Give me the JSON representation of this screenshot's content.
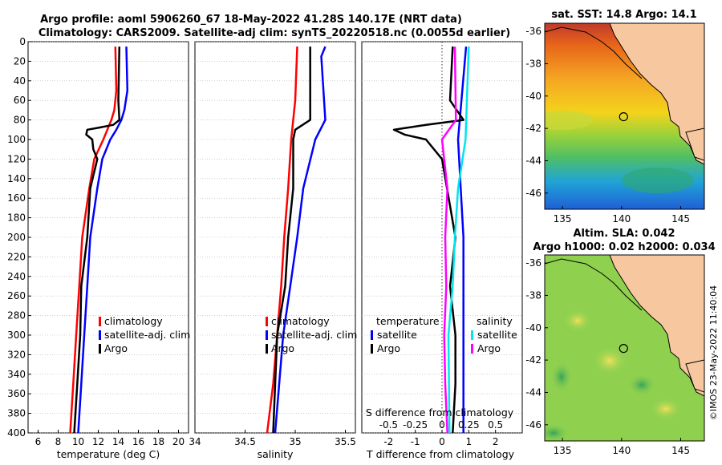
{
  "figure": {
    "title_line1": "Argo profile: aoml 5906260_67 18-May-2022 41.28S 140.17E (NRT data)",
    "title_line2": "Climatology: CARS2009. Satellite-adj clim: synTS_20220518.nc (0.0055d earlier)",
    "credit": "©IMOS 23-May-2022 11:40:04",
    "colors": {
      "climatology": "#ff0000",
      "satellite": "#0000ff",
      "argo": "#000000",
      "salinity_sat": "#00e5ee",
      "salinity_argo": "#ff00ff"
    }
  },
  "chart_data": [
    {
      "id": "temperature",
      "type": "line",
      "xlabel": "temperature (deg C)",
      "ylabel": "",
      "xlim": [
        5,
        21
      ],
      "ylim": [
        400,
        0
      ],
      "xticks": [
        "6",
        "8",
        "10",
        "12",
        "14",
        "16",
        "18",
        "20"
      ],
      "yticks": [
        "0",
        "20",
        "40",
        "60",
        "80",
        "100",
        "120",
        "140",
        "160",
        "180",
        "200",
        "220",
        "240",
        "260",
        "280",
        "300",
        "320",
        "340",
        "360",
        "380",
        "400"
      ],
      "legend": [
        "climatology",
        "satellite-adj. clim",
        "Argo"
      ],
      "series": [
        {
          "name": "climatology",
          "depth": [
            5,
            50,
            70,
            80,
            90,
            100,
            120,
            150,
            200,
            250,
            300,
            350,
            400
          ],
          "values": [
            13.7,
            13.8,
            13.6,
            13.3,
            12.9,
            12.5,
            11.6,
            11.1,
            10.4,
            10.1,
            9.8,
            9.5,
            9.2
          ]
        },
        {
          "name": "satellite-adj. clim",
          "depth": [
            5,
            50,
            70,
            80,
            90,
            100,
            120,
            150,
            200,
            250,
            300,
            350,
            400
          ],
          "values": [
            14.8,
            14.9,
            14.6,
            14.3,
            13.8,
            13.2,
            12.4,
            11.9,
            11.2,
            10.9,
            10.6,
            10.3,
            10.0
          ]
        },
        {
          "name": "Argo",
          "depth": [
            5,
            60,
            80,
            85,
            88,
            90,
            95,
            100,
            110,
            120,
            150,
            200,
            250,
            300,
            350,
            400
          ],
          "values": [
            14.1,
            14.0,
            14.1,
            13.5,
            12.0,
            10.9,
            10.8,
            11.4,
            11.5,
            11.9,
            11.2,
            10.9,
            10.3,
            10.2,
            9.9,
            9.6
          ]
        }
      ]
    },
    {
      "id": "salinity",
      "type": "line",
      "xlabel": "salinity",
      "ylabel": "",
      "xlim": [
        34,
        35.6
      ],
      "ylim": [
        400,
        0
      ],
      "xticks": [
        "34",
        "34.5",
        "35",
        "35.5"
      ],
      "legend": [
        "climatology",
        "satellite-adj. clim",
        "Argo"
      ],
      "series": [
        {
          "name": "climatology",
          "depth": [
            5,
            60,
            100,
            150,
            200,
            250,
            300,
            350,
            400
          ],
          "values": [
            35.02,
            35.0,
            34.96,
            34.93,
            34.89,
            34.86,
            34.82,
            34.78,
            34.72
          ]
        },
        {
          "name": "satellite-adj. clim",
          "depth": [
            5,
            15,
            80,
            100,
            150,
            200,
            250,
            300,
            350,
            400
          ],
          "values": [
            35.3,
            35.26,
            35.3,
            35.2,
            35.08,
            35.02,
            34.95,
            34.88,
            34.84,
            34.8
          ]
        },
        {
          "name": "Argo",
          "depth": [
            5,
            80,
            90,
            100,
            150,
            200,
            250,
            300,
            350,
            400
          ],
          "values": [
            35.15,
            35.15,
            35.0,
            34.98,
            34.98,
            34.93,
            34.9,
            34.82,
            34.8,
            34.78
          ]
        }
      ]
    },
    {
      "id": "differences",
      "type": "line",
      "xlabel": "T difference from climatology",
      "xlabel_top": "S difference from climatology",
      "xlim": [
        -3,
        3
      ],
      "ylim": [
        400,
        0
      ],
      "xticks": [
        "-2",
        "-1",
        "0",
        "1",
        "2"
      ],
      "xticks_top": [
        "-0.5",
        "-0.25",
        "0",
        "0.25",
        "0.5"
      ],
      "legend_left_title": "temperature",
      "legend_left": [
        "satellite",
        "Argo"
      ],
      "legend_right_title": "salinity",
      "legend_right": [
        "satellite",
        "Argo"
      ],
      "series": [
        {
          "name": "temperature satellite",
          "depth": [
            5,
            100,
            150,
            200,
            250,
            300,
            400
          ],
          "values": [
            0.9,
            0.6,
            0.7,
            0.8,
            0.8,
            0.8,
            0.8
          ]
        },
        {
          "name": "temperature Argo",
          "depth": [
            5,
            60,
            80,
            85,
            90,
            95,
            100,
            120,
            200,
            250,
            300,
            350,
            400
          ],
          "values": [
            0.4,
            0.3,
            0.8,
            -0.6,
            -1.8,
            -1.4,
            -0.6,
            0.0,
            0.5,
            0.3,
            0.5,
            0.5,
            0.4
          ]
        },
        {
          "name": "salinity satellite",
          "depth": [
            5,
            100,
            150,
            200,
            250,
            300,
            400
          ],
          "values": [
            0.25,
            0.22,
            0.15,
            0.12,
            0.1,
            0.06,
            0.07
          ]
        },
        {
          "name": "salinity Argo",
          "depth": [
            5,
            80,
            100,
            150,
            200,
            250,
            300,
            350,
            400
          ],
          "values": [
            0.12,
            0.13,
            0.0,
            0.05,
            0.03,
            0.04,
            0.02,
            0.03,
            0.05
          ]
        }
      ]
    },
    {
      "id": "sst_map",
      "type": "heatmap",
      "title": "sat. SST: 14.8 Argo: 14.1",
      "xlim": [
        133.5,
        147
      ],
      "ylim": [
        -47,
        -35.5
      ],
      "xticks": [
        "135",
        "140",
        "145"
      ],
      "yticks": [
        "-36",
        "-38",
        "-40",
        "-42",
        "-44",
        "-46"
      ],
      "marker": {
        "lon": 140.17,
        "lat": -41.28
      }
    },
    {
      "id": "sla_map",
      "type": "heatmap",
      "title_line1": "Altim. SLA: 0.042",
      "title_line2": "Argo h1000: 0.02 h2000: 0.034",
      "xlim": [
        133.5,
        147
      ],
      "ylim": [
        -47,
        -35.5
      ],
      "xticks": [
        "135",
        "140",
        "145"
      ],
      "yticks": [
        "-36",
        "-38",
        "-40",
        "-42",
        "-44",
        "-46"
      ],
      "marker": {
        "lon": 140.17,
        "lat": -41.28
      }
    }
  ]
}
